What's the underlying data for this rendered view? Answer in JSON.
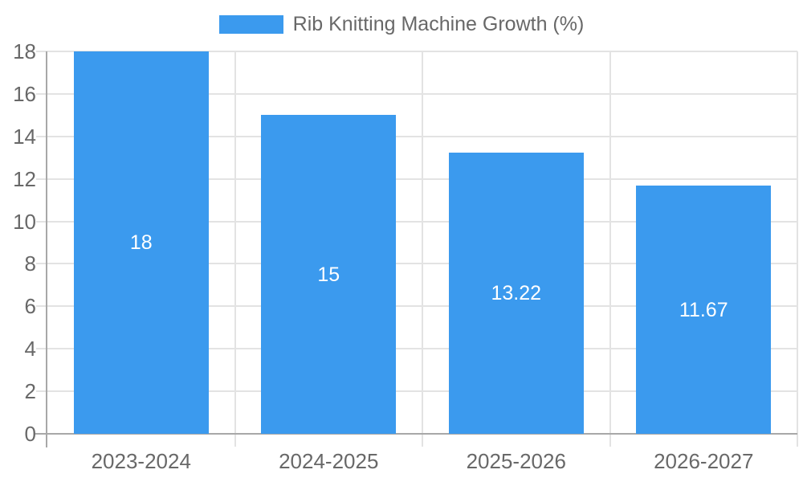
{
  "chart_data": {
    "type": "bar",
    "title": "",
    "legend": {
      "position": "top-center",
      "label": "Rib Knitting Machine Growth (%)"
    },
    "categories": [
      "2023-2024",
      "2024-2025",
      "2025-2026",
      "2026-2027"
    ],
    "series": [
      {
        "name": "Rib Knitting Machine Growth (%)",
        "values": [
          18,
          15,
          13.22,
          11.67
        ],
        "value_labels": [
          "18",
          "15",
          "13.22",
          "11.67"
        ]
      }
    ],
    "xlabel": "",
    "ylabel": "",
    "ylim": [
      0,
      18
    ],
    "yticks": [
      0,
      2,
      4,
      6,
      8,
      10,
      12,
      14,
      16,
      18
    ],
    "grid": true,
    "colors": {
      "bar": "#3b9aee",
      "grid": "#e3e3e3",
      "axis": "#a8a8a8",
      "tick_text": "#686868",
      "bar_label": "#ffffff",
      "background": "#ffffff"
    }
  }
}
